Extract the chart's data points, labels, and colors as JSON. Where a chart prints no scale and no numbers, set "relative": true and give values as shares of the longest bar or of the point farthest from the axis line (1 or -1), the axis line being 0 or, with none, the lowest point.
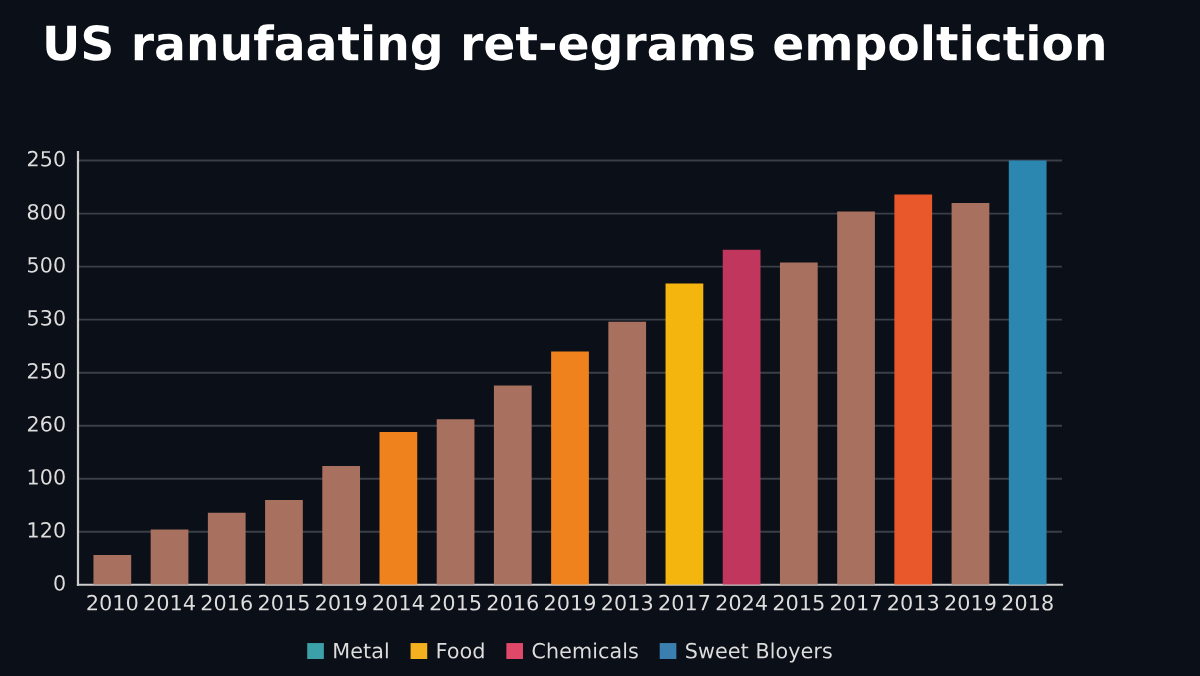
{
  "chart_data": {
    "type": "bar",
    "title": "US ranufaating ret-egrams empoltiction",
    "categories": [
      "2010",
      "2014",
      "2016",
      "2015",
      "2019",
      "2014",
      "2015",
      "2016",
      "2019",
      "2013",
      "2017",
      "2024",
      "2015",
      "2017",
      "2013",
      "2019",
      "2018"
    ],
    "series": [
      {
        "values": [
          0.07,
          0.13,
          0.17,
          0.2,
          0.28,
          0.36,
          0.39,
          0.47,
          0.55,
          0.62,
          0.71,
          0.79,
          0.76,
          0.88,
          0.92,
          0.9,
          1
        ],
        "colors": [
          "#a8705f",
          "#a8705f",
          "#a8705f",
          "#a8705f",
          "#a8705f",
          "#f0821e",
          "#a8705f",
          "#a8705f",
          "#f0821e",
          "#a8705f",
          "#f5b50f",
          "#c0365c",
          "#a8705f",
          "#a8705f",
          "#e8582a",
          "#a8705f",
          "#2b86b0"
        ]
      },
      {
        "name": "Metal",
        "color": "#3ba0a8",
        "values": [
          null,
          null,
          null,
          null,
          null,
          null,
          null,
          null,
          null,
          null,
          null,
          null,
          null,
          null,
          null,
          null,
          null
        ]
      },
      {
        "name": "Food",
        "color": "#f5b020",
        "values": [
          null,
          null,
          null,
          null,
          null,
          null,
          null,
          null,
          null,
          null,
          null,
          null,
          null,
          null,
          null,
          null,
          null
        ]
      },
      {
        "name": "Chemicals",
        "color": "#e0486a",
        "values": [
          null,
          null,
          null,
          null,
          null,
          null,
          null,
          null,
          null,
          null,
          null,
          null,
          null,
          null,
          null,
          null,
          null
        ]
      },
      {
        "name": "Sweet Bloyers",
        "color": "#3a7fb0",
        "values": [
          null,
          null,
          null,
          null,
          null,
          null,
          null,
          null,
          null,
          null,
          null,
          null,
          null,
          null,
          null,
          null,
          null
        ]
      }
    ],
    "relative": true,
    "annotations": [
      "0",
      "120",
      "100",
      "260",
      "250",
      "530",
      "500",
      "800",
      "250"
    ],
    "grid": "y",
    "legend": "bottom"
  }
}
